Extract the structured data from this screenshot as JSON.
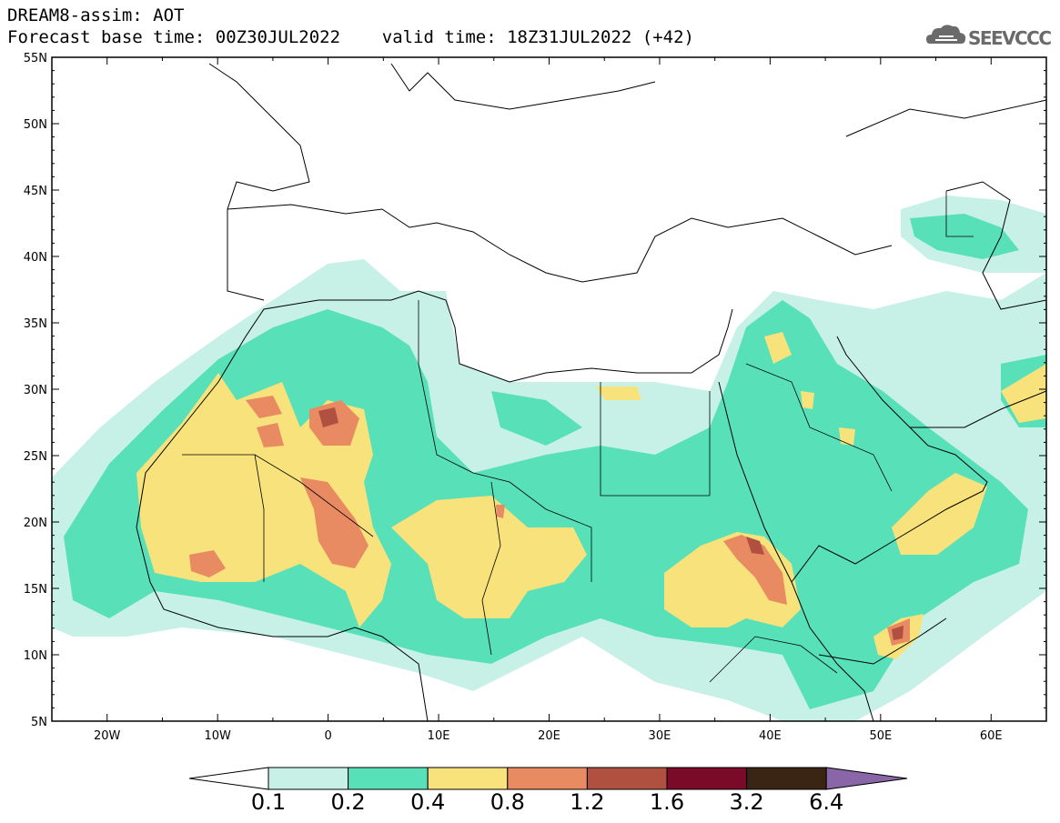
{
  "header": {
    "line1": "DREAM8-assim: AOT",
    "line2": "Forecast base time: 00Z30JUL2022    valid time: 18Z31JUL2022 (+42)"
  },
  "logo": {
    "text": "SEEVCCC",
    "icon": "cloud-icon"
  },
  "map": {
    "lon_range": [
      -25,
      65
    ],
    "lat_range": [
      5,
      55
    ],
    "lon_labels": [
      "20W",
      "10W",
      "0",
      "10E",
      "20E",
      "30E",
      "40E",
      "50E",
      "60E"
    ],
    "lat_labels": [
      "55N",
      "50N",
      "45N",
      "40N",
      "35N",
      "30N",
      "25N",
      "20N",
      "15N",
      "10N",
      "5N"
    ]
  },
  "colorbar": {
    "labels": [
      "0.1",
      "0.2",
      "0.4",
      "0.8",
      "1.2",
      "1.6",
      "3.2",
      "6.4"
    ],
    "colors": [
      "#ffffff",
      "#c7f0e7",
      "#58e0b8",
      "#f7e27c",
      "#e88a62",
      "#b05040",
      "#7a0a28",
      "#3a2414",
      "#8a66a8"
    ]
  }
}
